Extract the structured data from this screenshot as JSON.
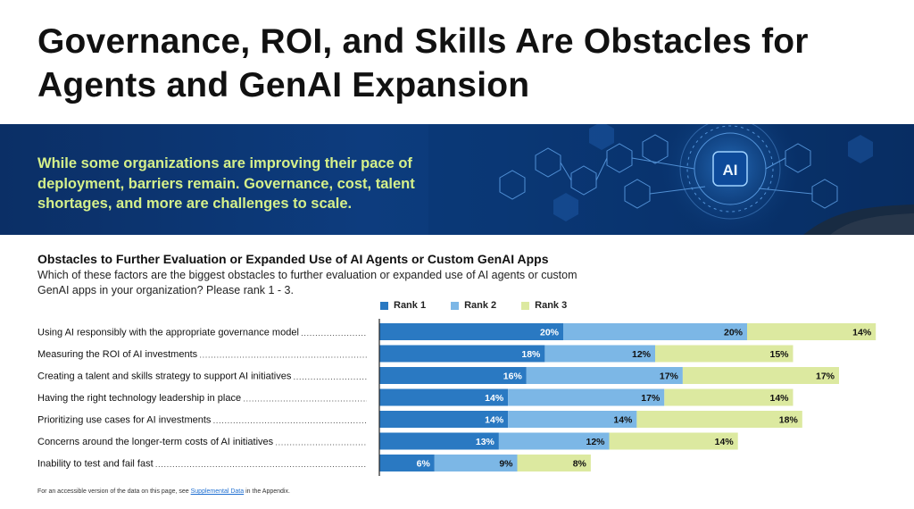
{
  "page": {
    "title": "Governance, ROI, and Skills Are Obstacles for Agents and GenAI Expansion",
    "banner_text": "While some organizations are improving their pace of deployment, barriers remain. Governance, cost, talent shortages, and more are challenges to scale.",
    "banner_icon_label": "AI",
    "footnote_before": "For an accessible version of the data on this page, see ",
    "footnote_link": "Supplemental Data",
    "footnote_after": " in the Appendix."
  },
  "colors": {
    "rank1": "#2a79c2",
    "rank2": "#7cb7e6",
    "rank3": "#dce9a0",
    "banner_text": "#d5f08a"
  },
  "chart_data": {
    "type": "bar",
    "orientation": "horizontal",
    "stacked": true,
    "title": "Obstacles to Further Evaluation or Expanded Use of AI Agents or Custom GenAI Apps",
    "subtitle": "Which of these factors are the biggest obstacles to further evaluation or expanded use of AI agents or custom GenAI apps in your organization? Please rank 1 - 3.",
    "categories": [
      "Using AI responsibly with the appropriate governance model",
      "Measuring the ROI of AI investments",
      "Creating a talent and skills strategy to support AI initiatives",
      "Having the right technology leadership in place",
      "Prioritizing use cases for AI investments",
      "Concerns around the longer-term costs of AI initiatives",
      "Inability to test and fail fast"
    ],
    "series": [
      {
        "name": "Rank 1",
        "values": [
          20,
          18,
          16,
          14,
          14,
          13,
          6
        ]
      },
      {
        "name": "Rank 2",
        "values": [
          20,
          12,
          17,
          17,
          14,
          12,
          9
        ]
      },
      {
        "name": "Rank 3",
        "values": [
          14,
          15,
          17,
          14,
          18,
          14,
          8
        ]
      }
    ],
    "value_suffix": "%",
    "legend_position": "top"
  }
}
